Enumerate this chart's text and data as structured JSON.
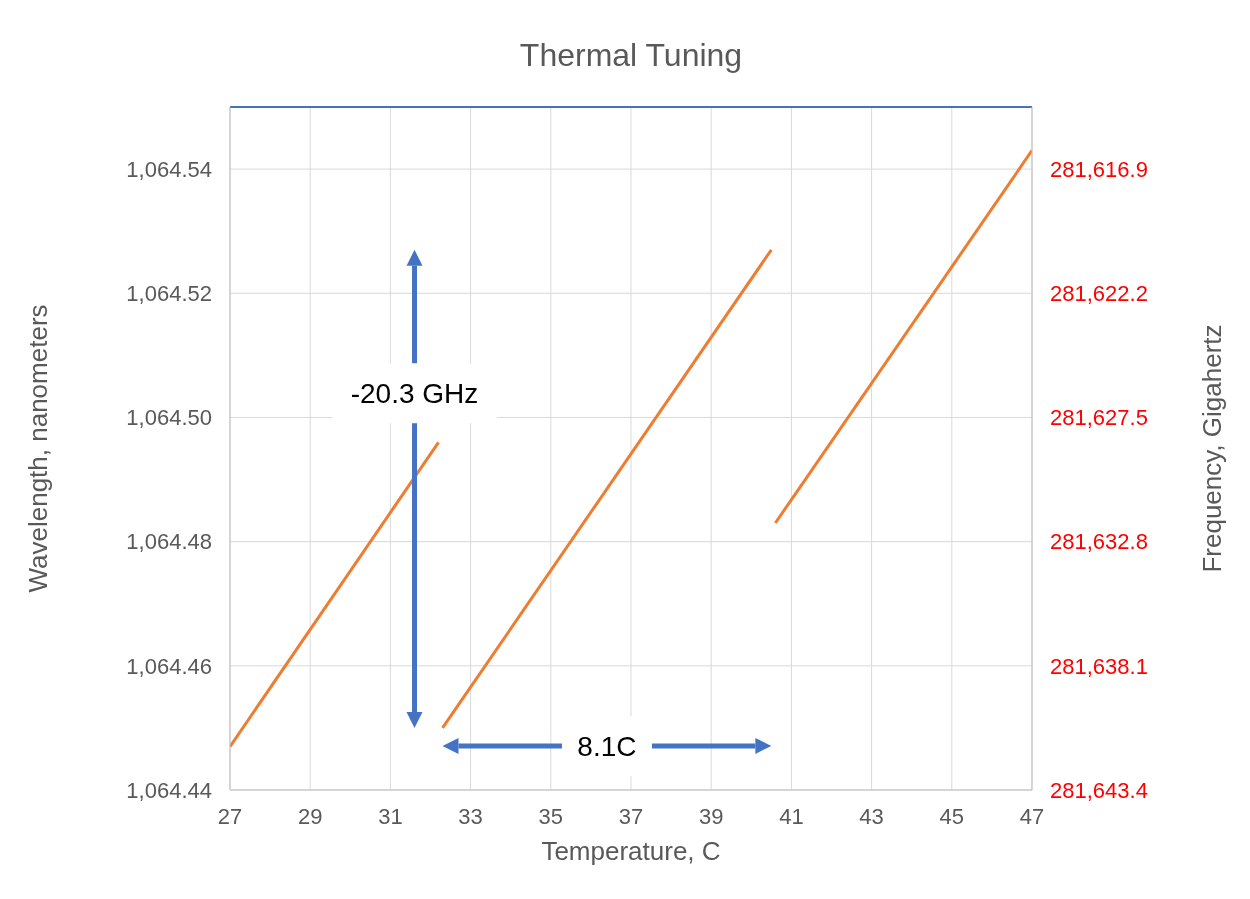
{
  "chart_data": {
    "type": "line",
    "title": "Thermal Tuning",
    "xlabel": "Temperature, C",
    "ylabel": "Wavelength,  nanometers",
    "y2label": "Frequency, Gigahertz",
    "xlim": [
      27,
      47
    ],
    "xticks": [
      27,
      29,
      31,
      33,
      35,
      37,
      39,
      41,
      43,
      45,
      47
    ],
    "ylim": [
      1064.44,
      1064.55
    ],
    "yticks": [
      {
        "value": 1064.44,
        "label": "1,064.44"
      },
      {
        "value": 1064.46,
        "label": "1,064.46"
      },
      {
        "value": 1064.48,
        "label": "1,064.48"
      },
      {
        "value": 1064.5,
        "label": "1,064.50"
      },
      {
        "value": 1064.52,
        "label": "1,064.52"
      },
      {
        "value": 1064.54,
        "label": "1,064.54"
      }
    ],
    "y2lim": [
      281643.4,
      281614.25
    ],
    "y2ticks": [
      {
        "value": 281643.4,
        "label": "281,643.4"
      },
      {
        "value": 281638.1,
        "label": "281,638.1"
      },
      {
        "value": 281632.8,
        "label": "281,632.8"
      },
      {
        "value": 281627.5,
        "label": "281,627.5"
      },
      {
        "value": 281622.2,
        "label": "281,622.2"
      },
      {
        "value": 281616.9,
        "label": "281,616.9"
      }
    ],
    "grid": true,
    "legend": false,
    "marker": "none",
    "line_style": "solid",
    "series": [
      {
        "color": "#ed7d31",
        "x": [
          27,
          32.2
        ],
        "values": [
          1064.447,
          1064.496
        ]
      },
      {
        "color": "#ed7d31",
        "x": [
          32.3,
          40.5
        ],
        "values": [
          1064.45,
          1064.527
        ]
      },
      {
        "color": "#ed7d31",
        "x": [
          40.6,
          47
        ],
        "values": [
          1064.483,
          1064.543
        ]
      }
    ],
    "ref_lines": [
      {
        "axis": "y",
        "value": 1064.55,
        "color": "#4472c4"
      }
    ],
    "annotations": [
      "-20.3 GHz",
      "8.1C"
    ]
  }
}
